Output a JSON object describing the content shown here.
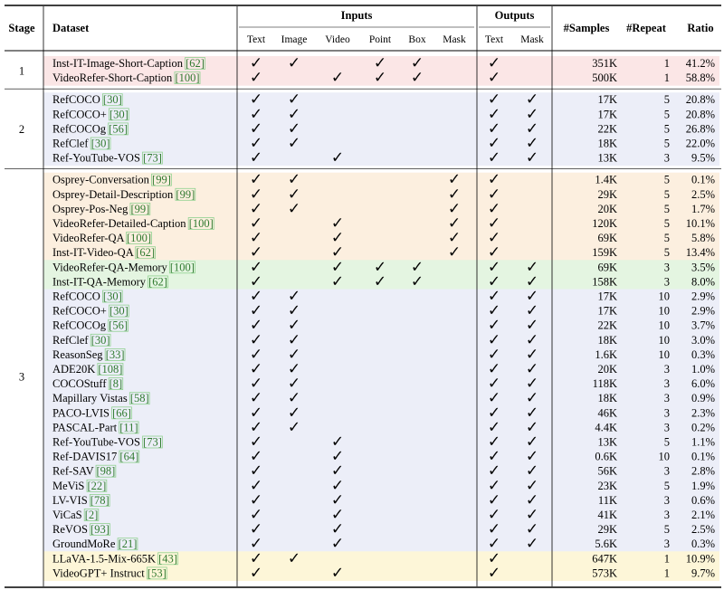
{
  "colors": {
    "stage1_bg": "#fbe6e6",
    "stage2_bg": "#eceef8",
    "stage3_orange_bg": "#fcefdf",
    "stage3_green_bg": "#e4f5e1",
    "stage3_blue_bg": "#eceef8",
    "stage3_yellow_bg": "#fdf6d8",
    "cite_box": "#8fd18f"
  },
  "header": {
    "stage": "Stage",
    "dataset": "Dataset",
    "inputs": "Inputs",
    "outputs": "Outputs",
    "samples": "#Samples",
    "repeat": "#Repeat",
    "ratio": "Ratio",
    "input_cols": [
      "Text",
      "Image",
      "Video",
      "Point",
      "Box",
      "Mask"
    ],
    "output_cols": [
      "Text",
      "Mask"
    ]
  },
  "check_glyph": "✓",
  "stages": [
    {
      "label": "1",
      "rows": [
        {
          "name": "Inst-IT-Image-Short-Caption",
          "cite": "[62]",
          "in": [
            1,
            1,
            0,
            1,
            1,
            0
          ],
          "out": [
            1,
            0
          ],
          "samples": "351K",
          "repeat": "1",
          "ratio": "41.2%",
          "bg": "stage1_bg"
        },
        {
          "name": "VideoRefer-Short-Caption",
          "cite": "[100]",
          "in": [
            1,
            0,
            1,
            1,
            1,
            0
          ],
          "out": [
            1,
            0
          ],
          "samples": "500K",
          "repeat": "1",
          "ratio": "58.8%",
          "bg": "stage1_bg"
        }
      ]
    },
    {
      "label": "2",
      "rows": [
        {
          "name": "RefCOCO",
          "cite": "[30]",
          "in": [
            1,
            1,
            0,
            0,
            0,
            0
          ],
          "out": [
            1,
            1
          ],
          "samples": "17K",
          "repeat": "5",
          "ratio": "20.8%",
          "bg": "stage2_bg"
        },
        {
          "name": "RefCOCO+",
          "cite": "[30]",
          "in": [
            1,
            1,
            0,
            0,
            0,
            0
          ],
          "out": [
            1,
            1
          ],
          "samples": "17K",
          "repeat": "5",
          "ratio": "20.8%",
          "bg": "stage2_bg"
        },
        {
          "name": "RefCOCOg",
          "cite": "[56]",
          "in": [
            1,
            1,
            0,
            0,
            0,
            0
          ],
          "out": [
            1,
            1
          ],
          "samples": "22K",
          "repeat": "5",
          "ratio": "26.8%",
          "bg": "stage2_bg"
        },
        {
          "name": "RefClef",
          "cite": "[30]",
          "in": [
            1,
            1,
            0,
            0,
            0,
            0
          ],
          "out": [
            1,
            1
          ],
          "samples": "18K",
          "repeat": "5",
          "ratio": "22.0%",
          "bg": "stage2_bg"
        },
        {
          "name": "Ref-YouTube-VOS",
          "cite": "[73]",
          "in": [
            1,
            0,
            1,
            0,
            0,
            0
          ],
          "out": [
            1,
            1
          ],
          "samples": "13K",
          "repeat": "3",
          "ratio": "9.5%",
          "bg": "stage2_bg"
        }
      ]
    },
    {
      "label": "3",
      "rows": [
        {
          "name": "Osprey-Conversation",
          "cite": "[99]",
          "in": [
            1,
            1,
            0,
            0,
            0,
            1
          ],
          "out": [
            1,
            0
          ],
          "samples": "1.4K",
          "repeat": "5",
          "ratio": "0.1%",
          "bg": "stage3_orange_bg"
        },
        {
          "name": "Osprey-Detail-Description",
          "cite": "[99]",
          "in": [
            1,
            1,
            0,
            0,
            0,
            1
          ],
          "out": [
            1,
            0
          ],
          "samples": "29K",
          "repeat": "5",
          "ratio": "2.5%",
          "bg": "stage3_orange_bg"
        },
        {
          "name": "Osprey-Pos-Neg",
          "cite": "[99]",
          "in": [
            1,
            1,
            0,
            0,
            0,
            1
          ],
          "out": [
            1,
            0
          ],
          "samples": "20K",
          "repeat": "5",
          "ratio": "1.7%",
          "bg": "stage3_orange_bg"
        },
        {
          "name": "VideoRefer-Detailed-Caption",
          "cite": "[100]",
          "in": [
            1,
            0,
            1,
            0,
            0,
            1
          ],
          "out": [
            1,
            0
          ],
          "samples": "120K",
          "repeat": "5",
          "ratio": "10.1%",
          "bg": "stage3_orange_bg"
        },
        {
          "name": "VideoRefer-QA",
          "cite": "[100]",
          "in": [
            1,
            0,
            1,
            0,
            0,
            1
          ],
          "out": [
            1,
            0
          ],
          "samples": "69K",
          "repeat": "5",
          "ratio": "5.8%",
          "bg": "stage3_orange_bg"
        },
        {
          "name": "Inst-IT-Video-QA",
          "cite": "[62]",
          "in": [
            1,
            0,
            1,
            0,
            0,
            1
          ],
          "out": [
            1,
            0
          ],
          "samples": "159K",
          "repeat": "5",
          "ratio": "13.4%",
          "bg": "stage3_orange_bg"
        },
        {
          "name": "VideoRefer-QA-Memory",
          "cite": "[100]",
          "in": [
            1,
            0,
            1,
            1,
            1,
            0
          ],
          "out": [
            1,
            1
          ],
          "samples": "69K",
          "repeat": "3",
          "ratio": "3.5%",
          "bg": "stage3_green_bg"
        },
        {
          "name": "Inst-IT-QA-Memory",
          "cite": "[62]",
          "in": [
            1,
            0,
            1,
            1,
            1,
            0
          ],
          "out": [
            1,
            1
          ],
          "samples": "158K",
          "repeat": "3",
          "ratio": "8.0%",
          "bg": "stage3_green_bg"
        },
        {
          "name": "RefCOCO",
          "cite": "[30]",
          "in": [
            1,
            1,
            0,
            0,
            0,
            0
          ],
          "out": [
            1,
            1
          ],
          "samples": "17K",
          "repeat": "10",
          "ratio": "2.9%",
          "bg": "stage3_blue_bg"
        },
        {
          "name": "RefCOCO+",
          "cite": "[30]",
          "in": [
            1,
            1,
            0,
            0,
            0,
            0
          ],
          "out": [
            1,
            1
          ],
          "samples": "17K",
          "repeat": "10",
          "ratio": "2.9%",
          "bg": "stage3_blue_bg"
        },
        {
          "name": "RefCOCOg",
          "cite": "[56]",
          "in": [
            1,
            1,
            0,
            0,
            0,
            0
          ],
          "out": [
            1,
            1
          ],
          "samples": "22K",
          "repeat": "10",
          "ratio": "3.7%",
          "bg": "stage3_blue_bg"
        },
        {
          "name": "RefClef",
          "cite": "[30]",
          "in": [
            1,
            1,
            0,
            0,
            0,
            0
          ],
          "out": [
            1,
            1
          ],
          "samples": "18K",
          "repeat": "10",
          "ratio": "3.0%",
          "bg": "stage3_blue_bg"
        },
        {
          "name": "ReasonSeg",
          "cite": "[33]",
          "in": [
            1,
            1,
            0,
            0,
            0,
            0
          ],
          "out": [
            1,
            1
          ],
          "samples": "1.6K",
          "repeat": "10",
          "ratio": "0.3%",
          "bg": "stage3_blue_bg"
        },
        {
          "name": "ADE20K",
          "cite": "[108]",
          "in": [
            1,
            1,
            0,
            0,
            0,
            0
          ],
          "out": [
            1,
            1
          ],
          "samples": "20K",
          "repeat": "3",
          "ratio": "1.0%",
          "bg": "stage3_blue_bg"
        },
        {
          "name": "COCOStuff",
          "cite": "[8]",
          "in": [
            1,
            1,
            0,
            0,
            0,
            0
          ],
          "out": [
            1,
            1
          ],
          "samples": "118K",
          "repeat": "3",
          "ratio": "6.0%",
          "bg": "stage3_blue_bg"
        },
        {
          "name": "Mapillary Vistas",
          "cite": "[58]",
          "in": [
            1,
            1,
            0,
            0,
            0,
            0
          ],
          "out": [
            1,
            1
          ],
          "samples": "18K",
          "repeat": "3",
          "ratio": "0.9%",
          "bg": "stage3_blue_bg"
        },
        {
          "name": "PACO-LVIS",
          "cite": "[66]",
          "in": [
            1,
            1,
            0,
            0,
            0,
            0
          ],
          "out": [
            1,
            1
          ],
          "samples": "46K",
          "repeat": "3",
          "ratio": "2.3%",
          "bg": "stage3_blue_bg"
        },
        {
          "name": "PASCAL-Part",
          "cite": "[11]",
          "in": [
            1,
            1,
            0,
            0,
            0,
            0
          ],
          "out": [
            1,
            1
          ],
          "samples": "4.4K",
          "repeat": "3",
          "ratio": "0.2%",
          "bg": "stage3_blue_bg"
        },
        {
          "name": "Ref-YouTube-VOS",
          "cite": "[73]",
          "in": [
            1,
            0,
            1,
            0,
            0,
            0
          ],
          "out": [
            1,
            1
          ],
          "samples": "13K",
          "repeat": "5",
          "ratio": "1.1%",
          "bg": "stage3_blue_bg"
        },
        {
          "name": "Ref-DAVIS17",
          "cite": "[64]",
          "in": [
            1,
            0,
            1,
            0,
            0,
            0
          ],
          "out": [
            1,
            1
          ],
          "samples": "0.6K",
          "repeat": "10",
          "ratio": "0.1%",
          "bg": "stage3_blue_bg"
        },
        {
          "name": "Ref-SAV",
          "cite": "[98]",
          "in": [
            1,
            0,
            1,
            0,
            0,
            0
          ],
          "out": [
            1,
            1
          ],
          "samples": "56K",
          "repeat": "3",
          "ratio": "2.8%",
          "bg": "stage3_blue_bg"
        },
        {
          "name": "MeViS",
          "cite": "[22]",
          "in": [
            1,
            0,
            1,
            0,
            0,
            0
          ],
          "out": [
            1,
            1
          ],
          "samples": "23K",
          "repeat": "5",
          "ratio": "1.9%",
          "bg": "stage3_blue_bg"
        },
        {
          "name": "LV-VIS",
          "cite": "[78]",
          "in": [
            1,
            0,
            1,
            0,
            0,
            0
          ],
          "out": [
            1,
            1
          ],
          "samples": "11K",
          "repeat": "3",
          "ratio": "0.6%",
          "bg": "stage3_blue_bg"
        },
        {
          "name": "ViCaS",
          "cite": "[2]",
          "in": [
            1,
            0,
            1,
            0,
            0,
            0
          ],
          "out": [
            1,
            1
          ],
          "samples": "41K",
          "repeat": "3",
          "ratio": "2.1%",
          "bg": "stage3_blue_bg"
        },
        {
          "name": "ReVOS",
          "cite": "[93]",
          "in": [
            1,
            0,
            1,
            0,
            0,
            0
          ],
          "out": [
            1,
            1
          ],
          "samples": "29K",
          "repeat": "5",
          "ratio": "2.5%",
          "bg": "stage3_blue_bg"
        },
        {
          "name": "GroundMoRe",
          "cite": "[21]",
          "in": [
            1,
            0,
            1,
            0,
            0,
            0
          ],
          "out": [
            1,
            1
          ],
          "samples": "5.6K",
          "repeat": "3",
          "ratio": "0.3%",
          "bg": "stage3_blue_bg"
        },
        {
          "name": "LLaVA-1.5-Mix-665K",
          "cite": "[43]",
          "in": [
            1,
            1,
            0,
            0,
            0,
            0
          ],
          "out": [
            1,
            0
          ],
          "samples": "647K",
          "repeat": "1",
          "ratio": "10.9%",
          "bg": "stage3_yellow_bg"
        },
        {
          "name": "VideoGPT+ Instruct",
          "cite": "[53]",
          "in": [
            1,
            0,
            1,
            0,
            0,
            0
          ],
          "out": [
            1,
            0
          ],
          "samples": "573K",
          "repeat": "1",
          "ratio": "9.7%",
          "bg": "stage3_yellow_bg"
        }
      ]
    }
  ]
}
